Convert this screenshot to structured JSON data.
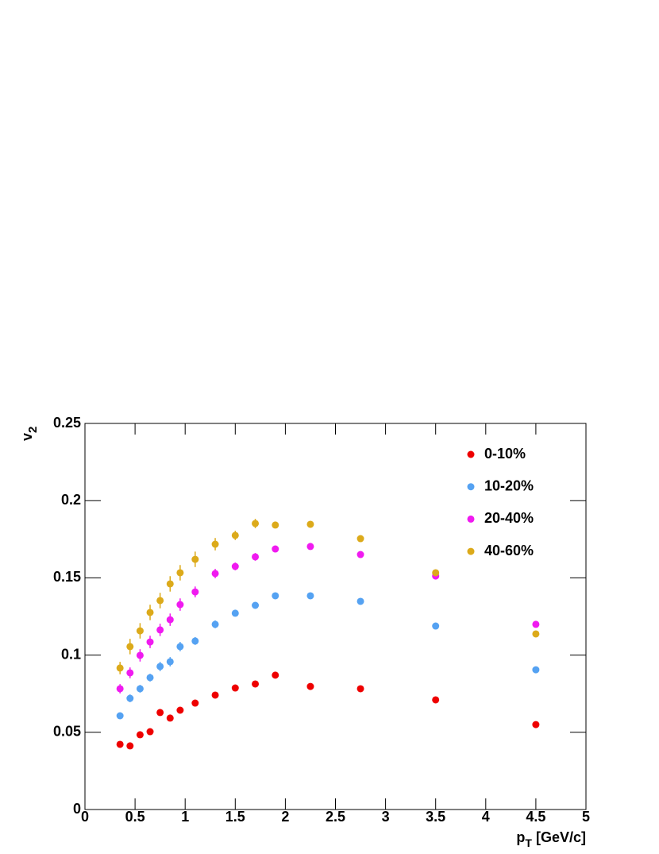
{
  "chart_data": {
    "type": "scatter",
    "xlabel": "p",
    "xlabel_sub": "T",
    "xlabel_rest": " [GeV/c]",
    "ylabel": "v",
    "ylabel_sub": "2",
    "xlim": [
      0,
      5
    ],
    "ylim": [
      0,
      0.25
    ],
    "xticks": [
      0,
      0.5,
      1,
      1.5,
      2,
      2.5,
      3,
      3.5,
      4,
      4.5,
      5
    ],
    "yticks": [
      0,
      0.05,
      0.1,
      0.15,
      0.2,
      0.25
    ],
    "legend": "upper right",
    "x": [
      0.35,
      0.45,
      0.55,
      0.65,
      0.75,
      0.85,
      0.95,
      1.1,
      1.3,
      1.5,
      1.7,
      1.9,
      2.25,
      2.75,
      3.5,
      4.5
    ],
    "series": [
      {
        "name": "0-10%",
        "color": "#ee0000",
        "values": [
          0.0422,
          0.0412,
          0.0484,
          0.0504,
          0.0628,
          0.0592,
          0.0643,
          0.0689,
          0.0741,
          0.0787,
          0.0813,
          0.087,
          0.0797,
          0.0782,
          0.071,
          0.055
        ],
        "errors": [
          0.001,
          0.001,
          0.001,
          0.0015,
          0.0015,
          0.0015,
          0.001,
          0.001,
          0.001,
          0.001,
          0.001,
          0.001,
          0.001,
          0.001,
          0.001,
          0.001
        ]
      },
      {
        "name": "10-20%",
        "color": "#55a2f2",
        "values": [
          0.0607,
          0.072,
          0.0782,
          0.0854,
          0.0926,
          0.0957,
          0.1055,
          0.1091,
          0.1199,
          0.1271,
          0.1322,
          0.1384,
          0.1384,
          0.1348,
          0.1188,
          0.0905
        ],
        "errors": [
          0.002,
          0.0025,
          0.0025,
          0.0025,
          0.003,
          0.003,
          0.003,
          0.0025,
          0.0025,
          0.002,
          0.002,
          0.002,
          0.001,
          0.001,
          0.001,
          0.001
        ]
      },
      {
        "name": "20-40%",
        "color": "#f01af0",
        "values": [
          0.0782,
          0.0885,
          0.0998,
          0.1085,
          0.1163,
          0.1229,
          0.1327,
          0.1409,
          0.1528,
          0.1574,
          0.1636,
          0.1687,
          0.1703,
          0.1651,
          0.1512,
          0.1199
        ],
        "errors": [
          0.003,
          0.0035,
          0.004,
          0.004,
          0.004,
          0.004,
          0.004,
          0.0035,
          0.003,
          0.0025,
          0.0025,
          0.002,
          0.001,
          0.001,
          0.001,
          0.001
        ]
      },
      {
        "name": "40-60%",
        "color": "#dcaa1a",
        "values": [
          0.0916,
          0.1055,
          0.1157,
          0.1276,
          0.1353,
          0.1461,
          0.1533,
          0.162,
          0.1718,
          0.1775,
          0.1852,
          0.1842,
          0.1847,
          0.1754,
          0.1533,
          0.1137
        ],
        "errors": [
          0.004,
          0.005,
          0.005,
          0.005,
          0.005,
          0.005,
          0.005,
          0.005,
          0.004,
          0.003,
          0.003,
          0.002,
          0.002,
          0.002,
          0.002,
          0.002
        ]
      }
    ]
  }
}
